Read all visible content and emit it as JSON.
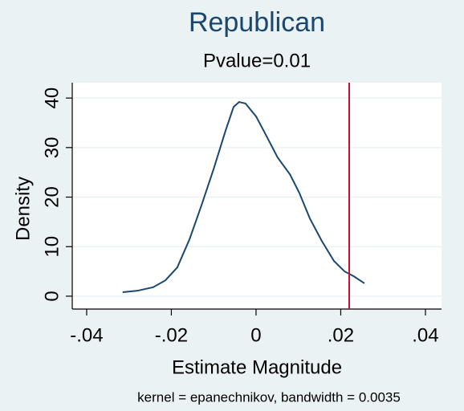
{
  "chart_data": {
    "type": "line",
    "title": "Republican",
    "subtitle": "Pvalue=0.01",
    "x_label": "Estimate Magnitude",
    "y_label": "Density",
    "note": "kernel = epanechnikov, bandwidth = 0.0035",
    "x": [
      -0.0315,
      -0.028,
      -0.0243,
      -0.0214,
      -0.0186,
      -0.0157,
      -0.0129,
      -0.01,
      -0.0072,
      -0.0053,
      -0.004,
      -0.0025,
      0,
      0.0023,
      0.0051,
      0.008,
      0.0102,
      0.0127,
      0.0155,
      0.0184,
      0.0209,
      0.0231,
      0.0256
    ],
    "values": [
      0.8,
      1.1,
      1.8,
      3.2,
      5.8,
      11.5,
      18.3,
      25.7,
      33.4,
      38.2,
      39.2,
      38.9,
      36.3,
      32.6,
      28.0,
      24.6,
      20.9,
      15.7,
      11.2,
      7.1,
      5.0,
      4.0,
      2.6
    ],
    "color": "#1a476f",
    "vline": 0.022,
    "vline_color": "#c8102e",
    "xlim": [
      -0.0434,
      0.0438
    ],
    "ylim": [
      -2.6,
      43.1
    ],
    "xticks": [
      {
        "value": -0.04,
        "label": "-.04"
      },
      {
        "value": -0.02,
        "label": "-.02"
      },
      {
        "value": 0,
        "label": "0"
      },
      {
        "value": 0.02,
        "label": ".02"
      },
      {
        "value": 0.04,
        "label": ".04"
      }
    ],
    "yticks": [
      0,
      10,
      20,
      30,
      40
    ],
    "grid": true
  }
}
